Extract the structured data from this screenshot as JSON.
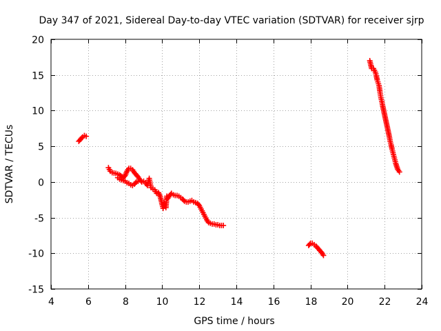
{
  "chart_data": {
    "type": "scatter",
    "title": "Day 347 of 2021, Sidereal Day-to-day VTEC variation (SDTVAR) for receiver sjrp",
    "xlabel": "GPS time / hours",
    "ylabel": "SDTVAR / TECUs",
    "xlim": [
      4,
      24
    ],
    "ylim": [
      -15,
      20
    ],
    "xticks": [
      4,
      6,
      8,
      10,
      12,
      14,
      16,
      18,
      20,
      22,
      24
    ],
    "yticks": [
      -15,
      -10,
      -5,
      0,
      5,
      10,
      15,
      20
    ],
    "grid": true,
    "marker": "plus",
    "color": "#ff0000",
    "series": [
      {
        "name": "SDTVAR",
        "segments": [
          [
            [
              5.5,
              5.7
            ],
            [
              5.6,
              6.0
            ],
            [
              5.7,
              6.3
            ],
            [
              5.8,
              6.5
            ],
            [
              5.9,
              6.4
            ]
          ],
          [
            [
              7.1,
              2.0
            ],
            [
              7.2,
              1.5
            ],
            [
              7.3,
              1.3
            ],
            [
              7.5,
              1.2
            ],
            [
              7.7,
              1.0
            ],
            [
              7.9,
              0.6
            ],
            [
              8.0,
              0.9
            ],
            [
              8.1,
              1.5
            ],
            [
              8.2,
              1.9
            ],
            [
              8.3,
              1.9
            ],
            [
              8.4,
              1.7
            ],
            [
              8.5,
              1.3
            ],
            [
              8.6,
              1.0
            ],
            [
              8.7,
              0.7
            ],
            [
              8.8,
              0.3
            ],
            [
              8.9,
              0.0
            ],
            [
              9.0,
              0.1
            ],
            [
              9.1,
              -0.1
            ],
            [
              9.2,
              -0.5
            ],
            [
              9.3,
              0.5
            ],
            [
              9.4,
              -0.8
            ],
            [
              9.5,
              -1.0
            ],
            [
              9.6,
              -1.1
            ],
            [
              9.7,
              -1.6
            ],
            [
              9.8,
              -1.5
            ],
            [
              9.9,
              -2.1
            ],
            [
              10.0,
              -3.2
            ],
            [
              10.05,
              -3.7
            ],
            [
              10.1,
              -2.9
            ],
            [
              10.2,
              -3.6
            ],
            [
              10.25,
              -2.0
            ],
            [
              10.3,
              -2.3
            ],
            [
              10.4,
              -1.9
            ],
            [
              10.5,
              -1.6
            ],
            [
              10.6,
              -1.8
            ],
            [
              10.7,
              -1.9
            ],
            [
              10.8,
              -1.9
            ],
            [
              10.9,
              -2.0
            ],
            [
              11.0,
              -2.2
            ],
            [
              11.1,
              -2.4
            ],
            [
              11.2,
              -2.7
            ],
            [
              11.3,
              -2.8
            ],
            [
              11.4,
              -2.8
            ],
            [
              11.5,
              -2.7
            ],
            [
              11.6,
              -2.6
            ],
            [
              11.7,
              -2.8
            ],
            [
              11.8,
              -2.9
            ],
            [
              11.9,
              -3.0
            ],
            [
              12.0,
              -3.3
            ],
            [
              12.1,
              -3.8
            ],
            [
              12.2,
              -4.3
            ],
            [
              12.3,
              -4.8
            ],
            [
              12.4,
              -5.3
            ],
            [
              12.5,
              -5.7
            ],
            [
              12.6,
              -5.8
            ],
            [
              12.7,
              -5.9
            ],
            [
              12.8,
              -5.9
            ],
            [
              12.9,
              -6.0
            ],
            [
              13.0,
              -6.0
            ],
            [
              13.1,
              -6.1
            ],
            [
              13.2,
              -6.1
            ],
            [
              13.3,
              -6.1
            ]
          ],
          [
            [
              7.6,
              0.6
            ],
            [
              7.7,
              0.4
            ],
            [
              7.8,
              0.3
            ],
            [
              7.9,
              0.2
            ],
            [
              8.0,
              0.1
            ],
            [
              8.1,
              -0.1
            ],
            [
              8.2,
              -0.2
            ],
            [
              8.3,
              -0.4
            ],
            [
              8.4,
              -0.5
            ],
            [
              8.5,
              -0.3
            ],
            [
              8.6,
              0.0
            ],
            [
              8.7,
              0.1
            ]
          ],
          [
            [
              17.9,
              -8.9
            ],
            [
              18.0,
              -8.6
            ],
            [
              18.1,
              -8.6
            ],
            [
              18.2,
              -8.8
            ],
            [
              18.3,
              -9.0
            ],
            [
              18.4,
              -9.3
            ],
            [
              18.5,
              -9.6
            ],
            [
              18.6,
              -9.9
            ],
            [
              18.7,
              -10.3
            ]
          ],
          [
            [
              21.2,
              17.0
            ],
            [
              21.3,
              15.9
            ],
            [
              21.4,
              15.9
            ],
            [
              21.5,
              15.4
            ],
            [
              21.55,
              14.9
            ],
            [
              21.6,
              14.3
            ],
            [
              21.7,
              13.5
            ],
            [
              21.75,
              12.6
            ],
            [
              21.8,
              11.8
            ],
            [
              21.85,
              11.3
            ],
            [
              21.9,
              10.6
            ],
            [
              21.95,
              10.0
            ],
            [
              22.0,
              9.4
            ],
            [
              22.05,
              8.8
            ],
            [
              22.1,
              8.2
            ],
            [
              22.15,
              7.6
            ],
            [
              22.2,
              7.0
            ],
            [
              22.25,
              6.4
            ],
            [
              22.3,
              5.7
            ],
            [
              22.35,
              5.2
            ],
            [
              22.4,
              4.6
            ],
            [
              22.45,
              4.1
            ],
            [
              22.5,
              3.6
            ],
            [
              22.55,
              3.1
            ],
            [
              22.6,
              2.6
            ],
            [
              22.65,
              2.2
            ],
            [
              22.7,
              1.8
            ],
            [
              22.75,
              1.6
            ],
            [
              22.8,
              1.4
            ]
          ]
        ]
      }
    ]
  }
}
